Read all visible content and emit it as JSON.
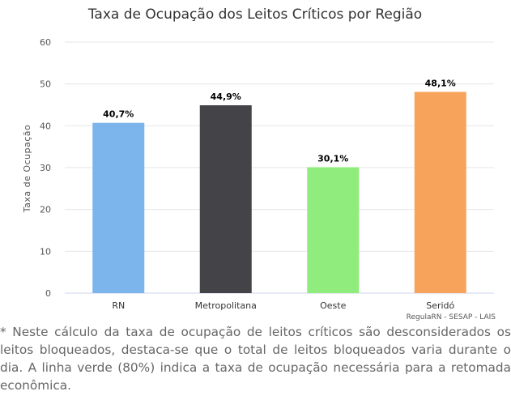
{
  "chart_data": {
    "type": "bar",
    "title": "Taxa de Ocupação dos Leitos Críticos por Região",
    "xlabel": "",
    "ylabel": "Taxa de Ocupação",
    "ylim": [
      0,
      60
    ],
    "yticks": [
      "0",
      "10",
      "20",
      "30",
      "40",
      "50",
      "60"
    ],
    "grid": true,
    "categories": [
      "RN",
      "Metropolitana",
      "Oeste",
      "Seridó"
    ],
    "values": [
      40.7,
      44.9,
      30.1,
      48.1
    ],
    "data_labels": [
      "40,7%",
      "44,9%",
      "30,1%",
      "48,1%"
    ],
    "colors": [
      "#7cb5ec",
      "#434348",
      "#90ed7d",
      "#f7a35c"
    ],
    "credits": "RegulaRN - SESAP - LAIS"
  },
  "note": "* Neste cálculo da taxa de ocupação de leitos críticos são desconsiderados os leitos bloqueados, destaca-se que o total de leitos bloqueados varia durante o dia. A linha verde (80%) indica a taxa de ocupação necessária para a retomada econômica."
}
